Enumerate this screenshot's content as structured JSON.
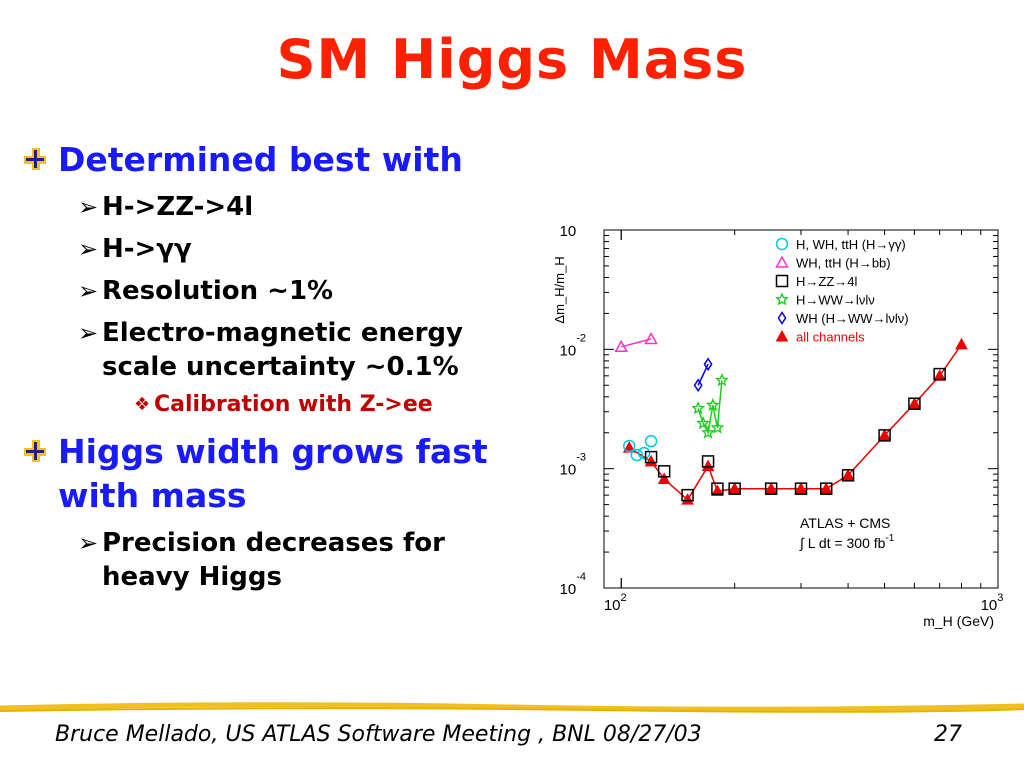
{
  "slide": {
    "title": "SM Higgs Mass",
    "bullets": [
      {
        "text": "Determined best with"
      },
      {
        "text": "H->ZZ->4l"
      },
      {
        "text": "H->γγ"
      },
      {
        "text": "Resolution ~1%"
      },
      {
        "text": "Electro-magnetic energy scale uncertainty ~0.1%"
      },
      {
        "text": "Calibration with Z->ee"
      },
      {
        "text": "Higgs width grows fast with mass"
      },
      {
        "text": "Precision decreases for heavy Higgs"
      }
    ],
    "footer": "Bruce Mellado, US ATLAS Software Meeting , BNL 08/27/03",
    "page_number": "27",
    "accent_color": "#ff2000",
    "bullet_color": "#1a1aff"
  },
  "chart_data": {
    "type": "scatter",
    "xscale": "log",
    "yscale": "log",
    "xlim": [
      90,
      1000
    ],
    "ylim": [
      0.0001,
      0.1
    ],
    "xlabel": "m_H (GeV)",
    "ylabel": "Δm_H/m_H",
    "xtick_labels": [
      "10^2",
      "10^3"
    ],
    "ytick_labels": [
      "10^-1",
      "10^-2",
      "10^-3",
      "10^-4"
    ],
    "annotation": [
      "ATLAS + CMS",
      "∫ L dt = 300 fb^-1"
    ],
    "legend_position": "top-right",
    "series": [
      {
        "name": "H, WH, ttH (H→γγ)",
        "marker": "circle",
        "color": "#00c8e8",
        "connected": false,
        "x": [
          105,
          110,
          115,
          120
        ],
        "y": [
          0.00155,
          0.0013,
          0.00135,
          0.0017
        ]
      },
      {
        "name": "WH, ttH (H→bb)",
        "marker": "triangle-open",
        "color": "#ff33cc",
        "connected": true,
        "x": [
          100,
          120
        ],
        "y": [
          0.0105,
          0.0122
        ]
      },
      {
        "name": "H→ZZ→4l",
        "marker": "square",
        "color": "#000000",
        "connected": false,
        "x": [
          120,
          130,
          150,
          170,
          180,
          200,
          250,
          300,
          350,
          400,
          500,
          600,
          700
        ],
        "y": [
          0.00125,
          0.00095,
          0.0006,
          0.00115,
          0.00068,
          0.00068,
          0.00068,
          0.00068,
          0.00068,
          0.00088,
          0.0019,
          0.0035,
          0.0062
        ]
      },
      {
        "name": "H→WW→lνlν",
        "marker": "star",
        "color": "#22cc22",
        "connected": true,
        "x": [
          160,
          165,
          170,
          175,
          180,
          185
        ],
        "y": [
          0.0032,
          0.0024,
          0.002,
          0.0034,
          0.0022,
          0.0055
        ]
      },
      {
        "name": "WH (H→WW→lνlν)",
        "marker": "diamond",
        "color": "#0000ee",
        "connected": true,
        "x": [
          160,
          170
        ],
        "y": [
          0.005,
          0.0075
        ]
      },
      {
        "name": "all channels",
        "marker": "triangle",
        "color": "#ee0000",
        "connected": true,
        "x": [
          105,
          120,
          130,
          150,
          170,
          180,
          200,
          250,
          300,
          350,
          400,
          500,
          600,
          700,
          800
        ],
        "y": [
          0.0015,
          0.00115,
          0.00082,
          0.00055,
          0.00105,
          0.00065,
          0.00068,
          0.00068,
          0.00068,
          0.00068,
          0.00088,
          0.0019,
          0.0035,
          0.006,
          0.011
        ]
      }
    ]
  }
}
